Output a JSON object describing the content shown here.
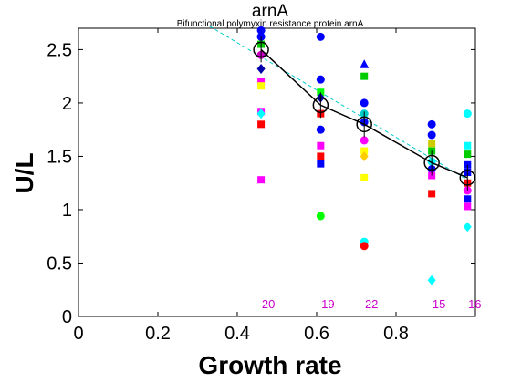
{
  "chart_data": {
    "type": "scatter",
    "title": "arnA",
    "subtitle": "Bifunctional polymyxin resistance protein arnA",
    "xlabel": "Growth rate",
    "ylabel": "U/L",
    "xlim": [
      0,
      1
    ],
    "ylim": [
      0,
      2.7
    ],
    "xticks": [
      "0",
      "0.2",
      "0.4",
      "0.6",
      "0.8"
    ],
    "yticks": [
      "0",
      "0.5",
      "1",
      "1.5",
      "2",
      "2.5"
    ],
    "grid": false,
    "mean_series": {
      "x": [
        0.46,
        0.61,
        0.72,
        0.89,
        0.98
      ],
      "y": [
        2.5,
        1.98,
        1.8,
        1.44,
        1.3
      ],
      "color": "#000000",
      "marker": "circle"
    },
    "fit_line": {
      "x": [
        0.33,
        0.98
      ],
      "y": [
        2.72,
        1.28
      ],
      "color": "#00cccc",
      "style": "dashed"
    },
    "counts": [
      {
        "x": 0.46,
        "label": "20"
      },
      {
        "x": 0.61,
        "label": "19"
      },
      {
        "x": 0.72,
        "label": "22"
      },
      {
        "x": 0.89,
        "label": "15"
      },
      {
        "x": 0.98,
        "label": "16"
      }
    ],
    "points": [
      {
        "x": 0.46,
        "y": 2.68,
        "color": "#0000ff",
        "marker": "circle"
      },
      {
        "x": 0.46,
        "y": 2.62,
        "color": "#0000ff",
        "marker": "circle"
      },
      {
        "x": 0.46,
        "y": 2.55,
        "color": "#00cc00",
        "marker": "square"
      },
      {
        "x": 0.46,
        "y": 2.45,
        "color": "#cc00cc",
        "marker": "circle"
      },
      {
        "x": 0.46,
        "y": 2.32,
        "color": "#0000aa",
        "marker": "diamond"
      },
      {
        "x": 0.46,
        "y": 2.2,
        "color": "#ff00ff",
        "marker": "square"
      },
      {
        "x": 0.46,
        "y": 2.16,
        "color": "#ffff00",
        "marker": "square"
      },
      {
        "x": 0.46,
        "y": 1.92,
        "color": "#ff00ff",
        "marker": "square"
      },
      {
        "x": 0.46,
        "y": 1.9,
        "color": "#00ffff",
        "marker": "diamond"
      },
      {
        "x": 0.46,
        "y": 1.8,
        "color": "#ff0000",
        "marker": "square"
      },
      {
        "x": 0.46,
        "y": 1.28,
        "color": "#ff00ff",
        "marker": "square"
      },
      {
        "x": 0.61,
        "y": 2.62,
        "color": "#0000ff",
        "marker": "circle"
      },
      {
        "x": 0.61,
        "y": 2.22,
        "color": "#0000ff",
        "marker": "circle"
      },
      {
        "x": 0.61,
        "y": 2.1,
        "color": "#00ff00",
        "marker": "square"
      },
      {
        "x": 0.61,
        "y": 2.05,
        "color": "#0000aa",
        "marker": "diamond"
      },
      {
        "x": 0.61,
        "y": 1.9,
        "color": "#ff0000",
        "marker": "square"
      },
      {
        "x": 0.61,
        "y": 1.75,
        "color": "#0000ff",
        "marker": "circle"
      },
      {
        "x": 0.61,
        "y": 1.6,
        "color": "#ff00ff",
        "marker": "square"
      },
      {
        "x": 0.61,
        "y": 1.5,
        "color": "#ff0000",
        "marker": "square"
      },
      {
        "x": 0.61,
        "y": 1.43,
        "color": "#0000ff",
        "marker": "square"
      },
      {
        "x": 0.61,
        "y": 0.94,
        "color": "#00ff00",
        "marker": "circle"
      },
      {
        "x": 0.72,
        "y": 2.36,
        "color": "#0000ff",
        "marker": "triangle"
      },
      {
        "x": 0.72,
        "y": 2.25,
        "color": "#00cc00",
        "marker": "square"
      },
      {
        "x": 0.72,
        "y": 2.0,
        "color": "#0000ff",
        "marker": "circle"
      },
      {
        "x": 0.72,
        "y": 1.9,
        "color": "#00cccc",
        "marker": "circle"
      },
      {
        "x": 0.72,
        "y": 1.82,
        "color": "#0000ff",
        "marker": "circle"
      },
      {
        "x": 0.72,
        "y": 1.65,
        "color": "#ff00ff",
        "marker": "circle"
      },
      {
        "x": 0.72,
        "y": 1.55,
        "color": "#ffff00",
        "marker": "square"
      },
      {
        "x": 0.72,
        "y": 1.5,
        "color": "#ffcc00",
        "marker": "diamond"
      },
      {
        "x": 0.72,
        "y": 1.3,
        "color": "#ffff00",
        "marker": "square"
      },
      {
        "x": 0.72,
        "y": 0.7,
        "color": "#00ffff",
        "marker": "circle"
      },
      {
        "x": 0.72,
        "y": 0.66,
        "color": "#ff0000",
        "marker": "circle"
      },
      {
        "x": 0.89,
        "y": 1.8,
        "color": "#0000ff",
        "marker": "circle"
      },
      {
        "x": 0.89,
        "y": 1.7,
        "color": "#0000ff",
        "marker": "circle"
      },
      {
        "x": 0.89,
        "y": 1.62,
        "color": "#cccc00",
        "marker": "square"
      },
      {
        "x": 0.89,
        "y": 1.55,
        "color": "#00cc00",
        "marker": "square"
      },
      {
        "x": 0.89,
        "y": 1.45,
        "color": "#00ffff",
        "marker": "circle"
      },
      {
        "x": 0.89,
        "y": 1.38,
        "color": "#0000ff",
        "marker": "circle"
      },
      {
        "x": 0.89,
        "y": 1.32,
        "color": "#ff00ff",
        "marker": "square"
      },
      {
        "x": 0.89,
        "y": 1.15,
        "color": "#ff0000",
        "marker": "square"
      },
      {
        "x": 0.89,
        "y": 0.34,
        "color": "#00ffff",
        "marker": "diamond"
      },
      {
        "x": 0.98,
        "y": 1.9,
        "color": "#00ffff",
        "marker": "circle"
      },
      {
        "x": 0.98,
        "y": 1.6,
        "color": "#00ffff",
        "marker": "square"
      },
      {
        "x": 0.98,
        "y": 1.52,
        "color": "#00cc00",
        "marker": "square"
      },
      {
        "x": 0.98,
        "y": 1.42,
        "color": "#0000ff",
        "marker": "square"
      },
      {
        "x": 0.98,
        "y": 1.35,
        "color": "#0000ff",
        "marker": "square"
      },
      {
        "x": 0.98,
        "y": 1.25,
        "color": "#ff0000",
        "marker": "square"
      },
      {
        "x": 0.98,
        "y": 1.18,
        "color": "#ff00ff",
        "marker": "circle"
      },
      {
        "x": 0.98,
        "y": 1.1,
        "color": "#0000ff",
        "marker": "square"
      },
      {
        "x": 0.98,
        "y": 1.03,
        "color": "#ff00ff",
        "marker": "square"
      },
      {
        "x": 0.98,
        "y": 0.84,
        "color": "#00ffff",
        "marker": "diamond"
      }
    ]
  }
}
